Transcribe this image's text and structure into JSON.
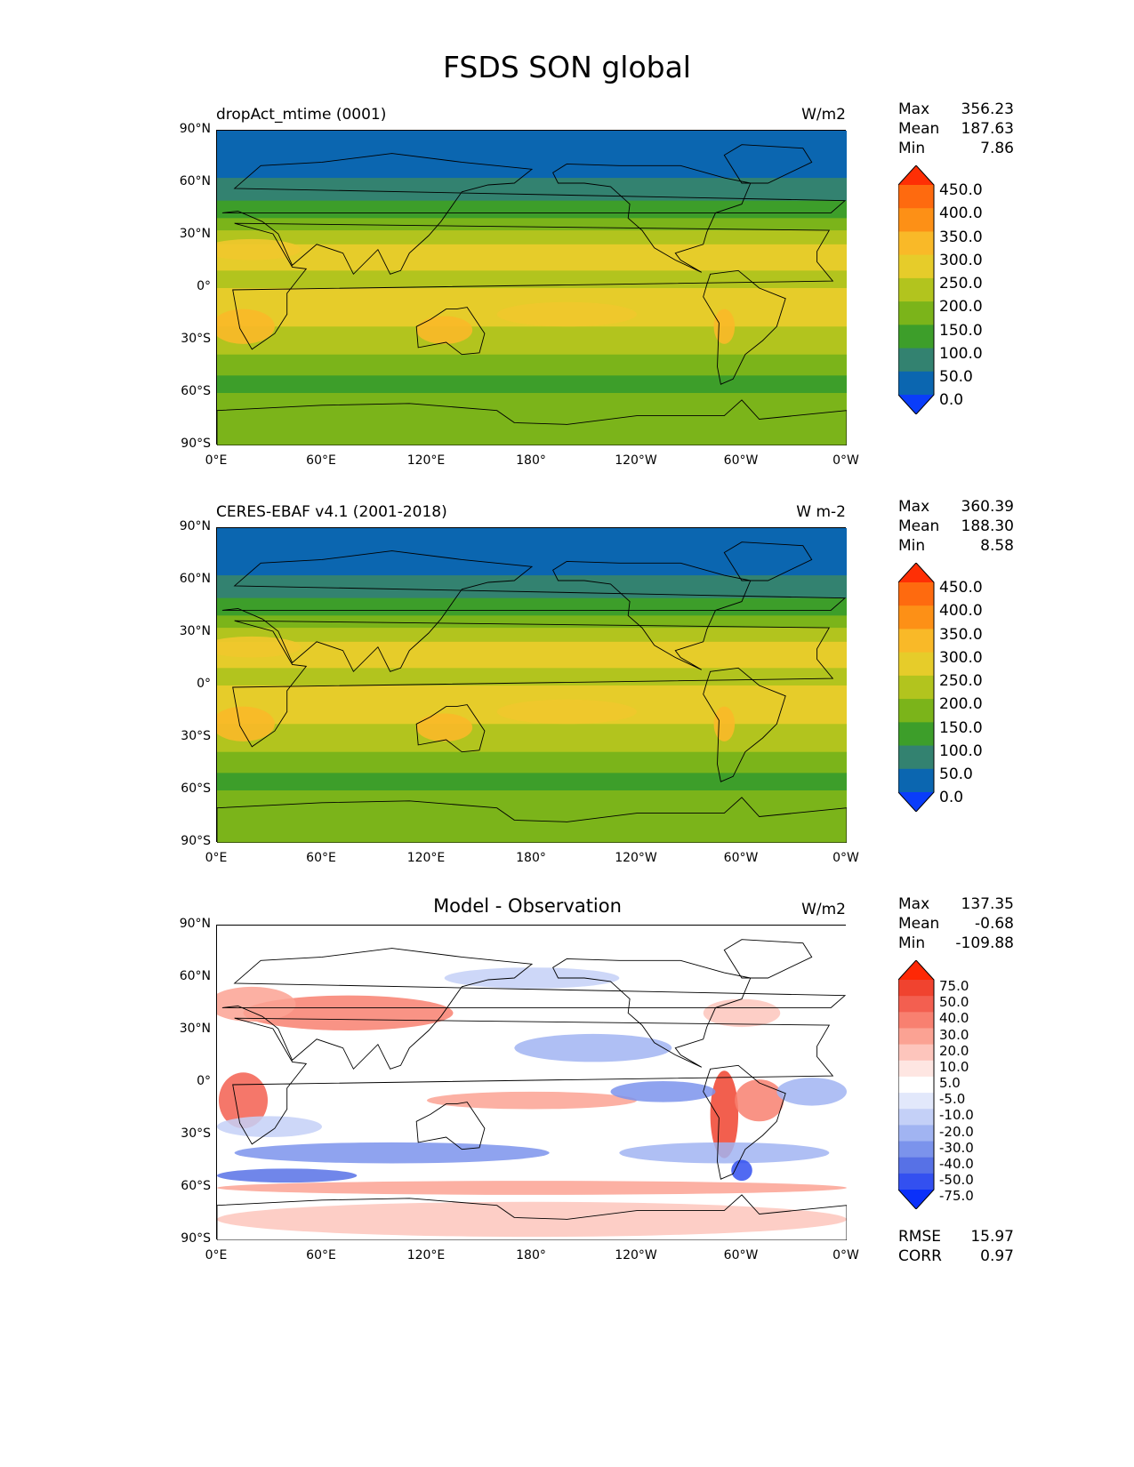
{
  "title": "FSDS SON global",
  "lat_ticks": [
    "90°N",
    "60°N",
    "30°N",
    "0°",
    "30°S",
    "60°S",
    "90°S"
  ],
  "lon_ticks": [
    "0°E",
    "60°E",
    "120°E",
    "180°",
    "120°W",
    "60°W",
    "0°W"
  ],
  "panels": [
    {
      "title": "dropAct_mtime (0001)",
      "units": "W/m2",
      "stats": [
        {
          "label": "Max",
          "value": "356.23"
        },
        {
          "label": "Mean",
          "value": "187.63"
        },
        {
          "label": "Min",
          "value": "7.86"
        }
      ],
      "colorbar": {
        "labels": [
          "450.0",
          "400.0",
          "350.0",
          "300.0",
          "250.0",
          "200.0",
          "150.0",
          "100.0",
          "50.0",
          "0.0"
        ],
        "colors": [
          "#fe2f05",
          "#fe6a0f",
          "#fd9016",
          "#f9b928",
          "#e6cc2a",
          "#b2c41e",
          "#7bb41a",
          "#3d9e2a",
          "#338270",
          "#0b66b0",
          "#0a3dfa"
        ]
      }
    },
    {
      "title": "CERES-EBAF v4.1 (2001-2018)",
      "units": "W m-2",
      "stats": [
        {
          "label": "Max",
          "value": "360.39"
        },
        {
          "label": "Mean",
          "value": "188.30"
        },
        {
          "label": "Min",
          "value": "8.58"
        }
      ],
      "colorbar": {
        "labels": [
          "450.0",
          "400.0",
          "350.0",
          "300.0",
          "250.0",
          "200.0",
          "150.0",
          "100.0",
          "50.0",
          "0.0"
        ],
        "colors": [
          "#fe2f05",
          "#fe6a0f",
          "#fd9016",
          "#f9b928",
          "#e6cc2a",
          "#b2c41e",
          "#7bb41a",
          "#3d9e2a",
          "#338270",
          "#0b66b0",
          "#0a3dfa"
        ]
      }
    },
    {
      "title": "Model - Observation",
      "units": "W/m2",
      "stats": [
        {
          "label": "Max",
          "value": "137.35"
        },
        {
          "label": "Mean",
          "value": "-0.68"
        },
        {
          "label": "Min",
          "value": "-109.88"
        }
      ],
      "metrics": [
        {
          "label": "RMSE",
          "value": "15.97"
        },
        {
          "label": "CORR",
          "value": "0.97"
        }
      ],
      "colorbar": {
        "labels": [
          "75.0",
          "50.0",
          "40.0",
          "30.0",
          "20.0",
          "10.0",
          "5.0",
          "-5.0",
          "-10.0",
          "-20.0",
          "-30.0",
          "-40.0",
          "-50.0",
          "-75.0"
        ],
        "colors": [
          "#fe2805",
          "#f0432f",
          "#f35f50",
          "#f88070",
          "#fba293",
          "#fdc5bc",
          "#fee6e2",
          "#ffffff",
          "#e2e8fb",
          "#c4d0f7",
          "#a1b4f2",
          "#7b93ec",
          "#5771e6",
          "#3350f0",
          "#0a30fa"
        ]
      }
    }
  ]
}
